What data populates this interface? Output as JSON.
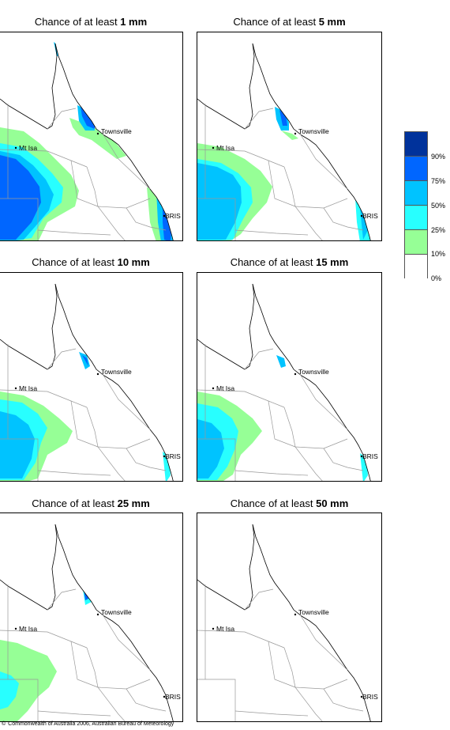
{
  "panels": [
    {
      "title_prefix": "Chance of at least ",
      "threshold": "1 mm",
      "level": 1
    },
    {
      "title_prefix": "Chance of at least ",
      "threshold": "5 mm",
      "level": 2
    },
    {
      "title_prefix": "Chance of at least ",
      "threshold": "10 mm",
      "level": 3
    },
    {
      "title_prefix": "Chance of at least ",
      "threshold": "15 mm",
      "level": 4
    },
    {
      "title_prefix": "Chance of at least ",
      "threshold": "25 mm",
      "level": 5
    },
    {
      "title_prefix": "Chance of at least ",
      "threshold": "50 mm",
      "level": 6
    }
  ],
  "place_labels": {
    "townsville": "Townsville",
    "mt_isa": "Mt Isa",
    "bris": "BRIS"
  },
  "legend": {
    "labels": [
      "90%",
      "75%",
      "50%",
      "25%",
      "10%",
      "0%"
    ],
    "colors": [
      "#00329b",
      "#0066ff",
      "#00c3ff",
      "#28ffff",
      "#96ff96",
      "#ffffff"
    ]
  },
  "footer": {
    "symbol": "©",
    "text": "Commonwealth of Australia 2006, Australian Bureau of Meteorology"
  }
}
